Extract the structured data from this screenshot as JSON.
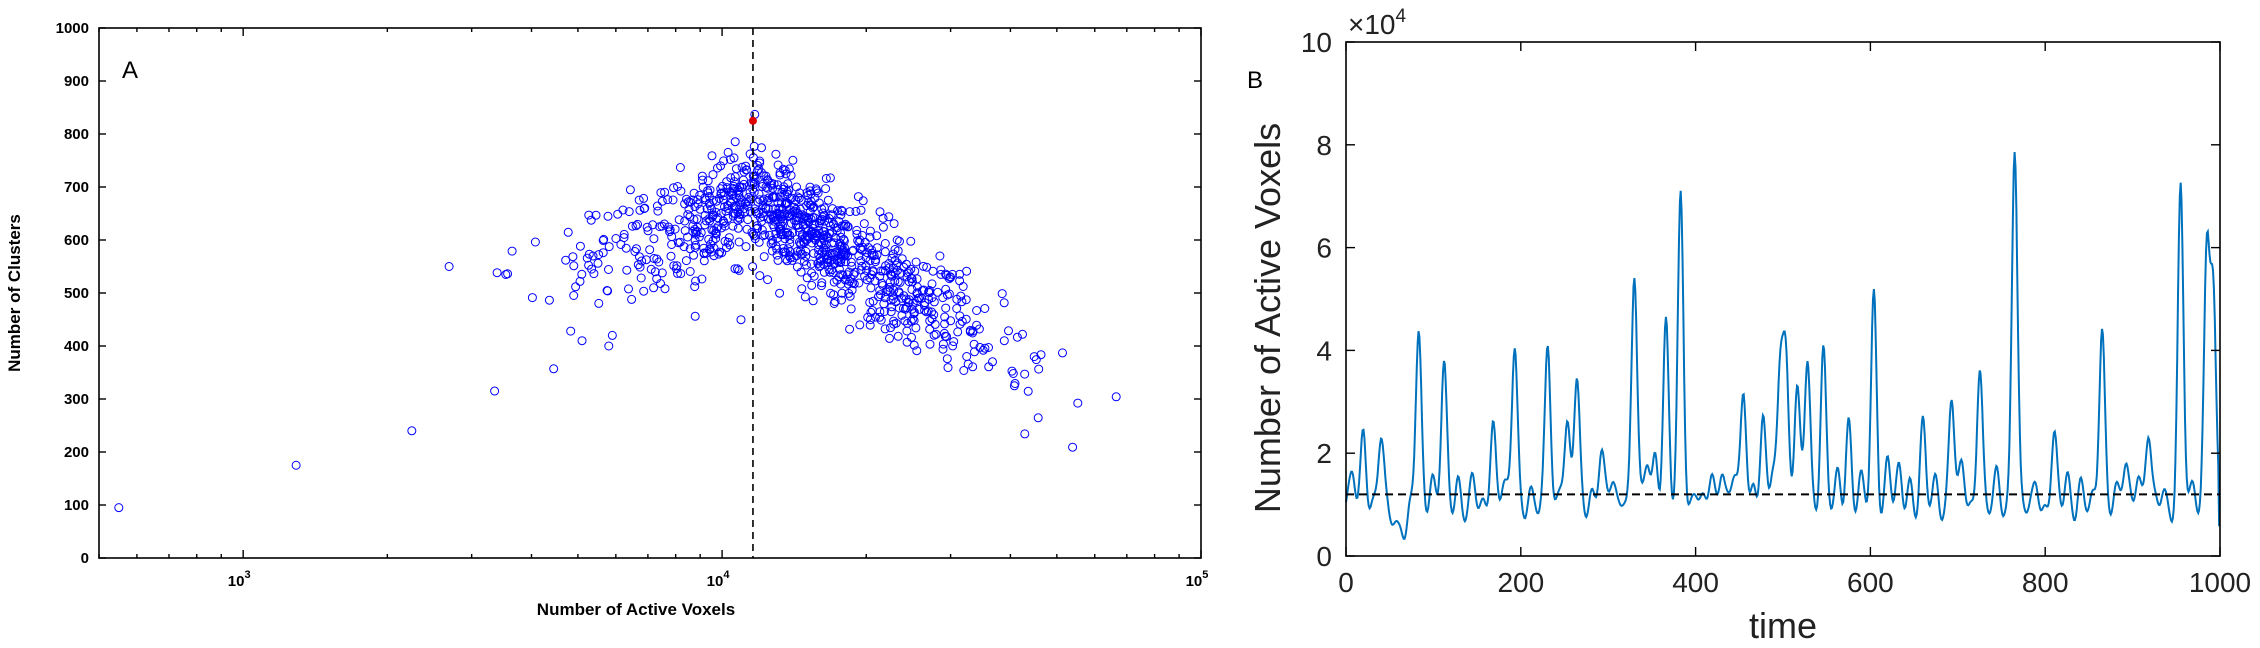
{
  "chart_data": [
    {
      "panel": "A",
      "type": "scatter",
      "panel_label": "A",
      "xlabel": "Number of Active Voxels",
      "ylabel": "Number of Clusters",
      "xscale": "log",
      "xlim": [
        500,
        100000
      ],
      "ylim": [
        0,
        1000
      ],
      "xticks": [
        {
          "value": 1000,
          "base": "10",
          "exp": "3"
        },
        {
          "value": 10000,
          "base": "10",
          "exp": "4"
        },
        {
          "value": 100000,
          "base": "10",
          "exp": "5"
        }
      ],
      "yticks": [
        "0",
        "100",
        "200",
        "300",
        "400",
        "500",
        "600",
        "700",
        "800",
        "900",
        "1000"
      ],
      "marker_color": "#0000ff",
      "threshold_x": 11600,
      "highlight_point": {
        "x": 11600,
        "y": 825,
        "color": "#e00000"
      },
      "outlier_points": [
        [
          550,
          95
        ],
        [
          1290,
          175
        ],
        [
          2250,
          240
        ],
        [
          3350,
          315
        ],
        [
          4450,
          357
        ],
        [
          5100,
          410
        ],
        [
          5800,
          400
        ],
        [
          5900,
          420
        ]
      ],
      "n_cloud_points": 1000
    },
    {
      "panel": "B",
      "type": "line",
      "panel_label": "B",
      "xlabel": "time",
      "ylabel": "Number of Active Voxels",
      "xlim": [
        0,
        1000
      ],
      "ylim": [
        0,
        100000
      ],
      "xticks": [
        "0",
        "200",
        "400",
        "600",
        "800",
        "1000"
      ],
      "yticks": [
        "0",
        "2",
        "4",
        "6",
        "8",
        "10"
      ],
      "y_multiplier_base": "×10",
      "y_multiplier_exp": "4",
      "line_color": "#0072BD",
      "threshold_y": 12000,
      "baseline": 9000,
      "peaks": [
        [
          8,
          16000
        ],
        [
          20,
          25000
        ],
        [
          40,
          23000
        ],
        [
          60,
          6000
        ],
        [
          68,
          5000
        ],
        [
          83,
          44000
        ],
        [
          98,
          16000
        ],
        [
          112,
          36500
        ],
        [
          128,
          15000
        ],
        [
          145,
          14000
        ],
        [
          168,
          27000
        ],
        [
          180,
          14500
        ],
        [
          193,
          41500
        ],
        [
          210,
          13000
        ],
        [
          231,
          41000
        ],
        [
          246,
          14500
        ],
        [
          253,
          24000
        ],
        [
          264,
          34500
        ],
        [
          280,
          13000
        ],
        [
          292,
          20500
        ],
        [
          305,
          15500
        ],
        [
          318,
          13000
        ],
        [
          330,
          54500
        ],
        [
          345,
          19500
        ],
        [
          354,
          19500
        ],
        [
          366,
          44000
        ],
        [
          383,
          70800
        ],
        [
          400,
          13000
        ],
        [
          418,
          16500
        ],
        [
          430,
          18500
        ],
        [
          444,
          16000
        ],
        [
          455,
          32500
        ],
        [
          467,
          14000
        ],
        [
          477,
          25000
        ],
        [
          488,
          16000
        ],
        [
          497,
          37000
        ],
        [
          503,
          38500
        ],
        [
          516,
          32500
        ],
        [
          528,
          39500
        ],
        [
          546,
          40000
        ],
        [
          563,
          15000
        ],
        [
          575,
          26500
        ],
        [
          589,
          14000
        ],
        [
          604,
          50500
        ],
        [
          620,
          18500
        ],
        [
          633,
          15500
        ],
        [
          645,
          14500
        ],
        [
          660,
          25000
        ],
        [
          675,
          14000
        ],
        [
          693,
          32000
        ],
        [
          705,
          17000
        ],
        [
          725,
          38000
        ],
        [
          745,
          15000
        ],
        [
          765,
          81000
        ],
        [
          790,
          15000
        ],
        [
          810,
          23000
        ],
        [
          825,
          15500
        ],
        [
          840,
          14000
        ],
        [
          853,
          10000
        ],
        [
          865,
          45500
        ],
        [
          880,
          13000
        ],
        [
          892,
          18000
        ],
        [
          906,
          17500
        ],
        [
          918,
          24500
        ],
        [
          935,
          13000
        ],
        [
          955,
          71200
        ],
        [
          970,
          13000
        ],
        [
          985,
          60500
        ],
        [
          992,
          50000
        ]
      ]
    }
  ]
}
